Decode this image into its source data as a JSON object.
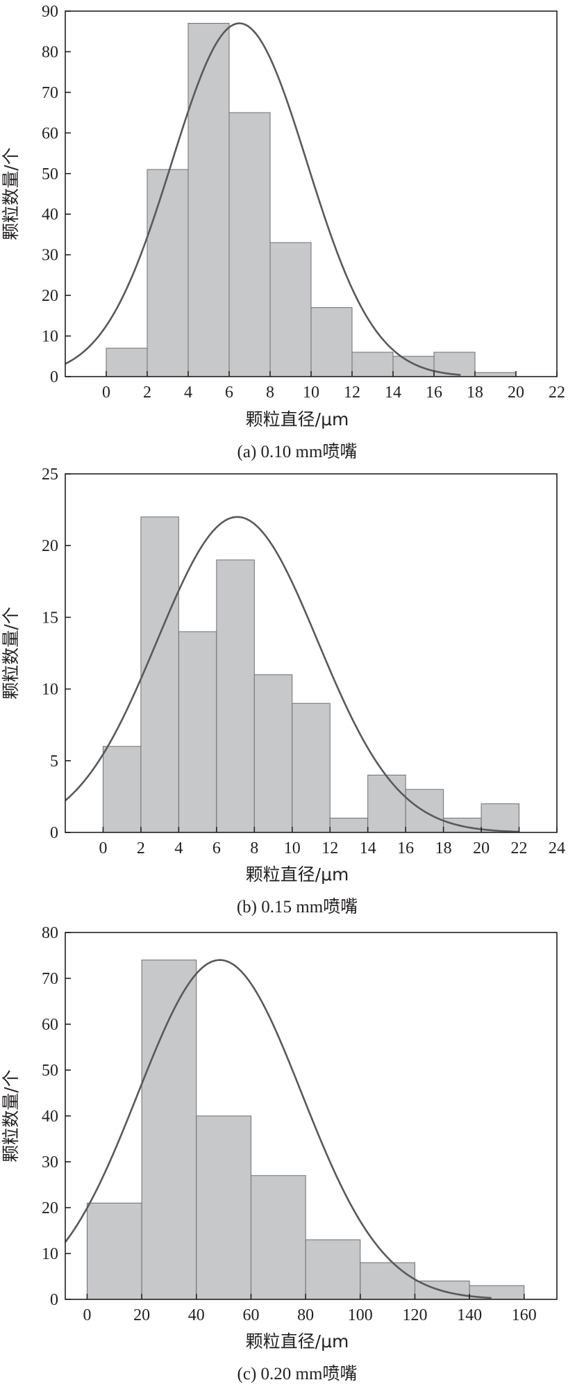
{
  "chart_data": [
    {
      "type": "bar",
      "caption": "(a) 0.10 mm喷嘴",
      "xlabel": "颗粒直径/μm",
      "ylabel": "颗粒数量/个",
      "xlim": [
        -2,
        22
      ],
      "ylim": [
        0,
        90
      ],
      "xticks": [
        0,
        2,
        4,
        6,
        8,
        10,
        12,
        14,
        16,
        18,
        20,
        22
      ],
      "yticks": [
        0,
        10,
        20,
        30,
        40,
        50,
        60,
        70,
        80,
        90
      ],
      "bins": [
        {
          "x0": 0,
          "x1": 2,
          "value": 7
        },
        {
          "x0": 2,
          "x1": 4,
          "value": 51
        },
        {
          "x0": 4,
          "x1": 6,
          "value": 87
        },
        {
          "x0": 6,
          "x1": 8,
          "value": 65
        },
        {
          "x0": 8,
          "x1": 10,
          "value": 33
        },
        {
          "x0": 10,
          "x1": 12,
          "value": 17
        },
        {
          "x0": 12,
          "x1": 14,
          "value": 6
        },
        {
          "x0": 14,
          "x1": 16,
          "value": 5
        },
        {
          "x0": 16,
          "x1": 18,
          "value": 6
        },
        {
          "x0": 18,
          "x1": 20,
          "value": 1
        }
      ],
      "fit_curve": {
        "type": "normal",
        "peak": 87,
        "mean": 6.5,
        "sd": 3.3,
        "x_range": [
          -2,
          17.3
        ]
      },
      "grid": false,
      "legend": "none"
    },
    {
      "type": "bar",
      "caption": "(b) 0.15 mm喷嘴",
      "xlabel": "颗粒直径/μm",
      "ylabel": "颗粒数量/个",
      "xlim": [
        -2,
        24
      ],
      "ylim": [
        0,
        25
      ],
      "xticks": [
        0,
        2,
        4,
        6,
        8,
        10,
        12,
        14,
        16,
        18,
        20,
        22,
        24
      ],
      "yticks": [
        0,
        5,
        10,
        15,
        20,
        25
      ],
      "bins": [
        {
          "x0": 0,
          "x1": 2,
          "value": 6
        },
        {
          "x0": 2,
          "x1": 4,
          "value": 22
        },
        {
          "x0": 4,
          "x1": 6,
          "value": 14
        },
        {
          "x0": 6,
          "x1": 8,
          "value": 19
        },
        {
          "x0": 8,
          "x1": 10,
          "value": 11
        },
        {
          "x0": 10,
          "x1": 12,
          "value": 9
        },
        {
          "x0": 12,
          "x1": 14,
          "value": 1
        },
        {
          "x0": 14,
          "x1": 16,
          "value": 4
        },
        {
          "x0": 16,
          "x1": 18,
          "value": 3
        },
        {
          "x0": 18,
          "x1": 20,
          "value": 1
        },
        {
          "x0": 20,
          "x1": 22,
          "value": 2
        }
      ],
      "fit_curve": {
        "type": "normal",
        "peak": 22,
        "mean": 7.1,
        "sd": 4.25,
        "x_range": [
          -2,
          22
        ]
      },
      "grid": false,
      "legend": "none"
    },
    {
      "type": "bar",
      "caption": "(c) 0.20 mm喷嘴",
      "xlabel": "颗粒直径/μm",
      "ylabel": "颗粒数量/个",
      "xlim": [
        -8,
        172
      ],
      "ylim": [
        0,
        80
      ],
      "xticks": [
        0,
        20,
        40,
        60,
        80,
        100,
        120,
        140,
        160
      ],
      "yticks": [
        0,
        10,
        20,
        30,
        40,
        50,
        60,
        70,
        80
      ],
      "bins": [
        {
          "x0": 0,
          "x1": 20,
          "value": 21
        },
        {
          "x0": 20,
          "x1": 40,
          "value": 74
        },
        {
          "x0": 40,
          "x1": 60,
          "value": 40
        },
        {
          "x0": 60,
          "x1": 80,
          "value": 27
        },
        {
          "x0": 80,
          "x1": 100,
          "value": 13
        },
        {
          "x0": 100,
          "x1": 120,
          "value": 8
        },
        {
          "x0": 120,
          "x1": 140,
          "value": 4
        },
        {
          "x0": 140,
          "x1": 160,
          "value": 3
        }
      ],
      "fit_curve": {
        "type": "normal",
        "peak": 74,
        "mean": 48.6,
        "sd": 30,
        "x_range": [
          -8,
          148
        ]
      },
      "grid": false,
      "legend": "none"
    }
  ]
}
